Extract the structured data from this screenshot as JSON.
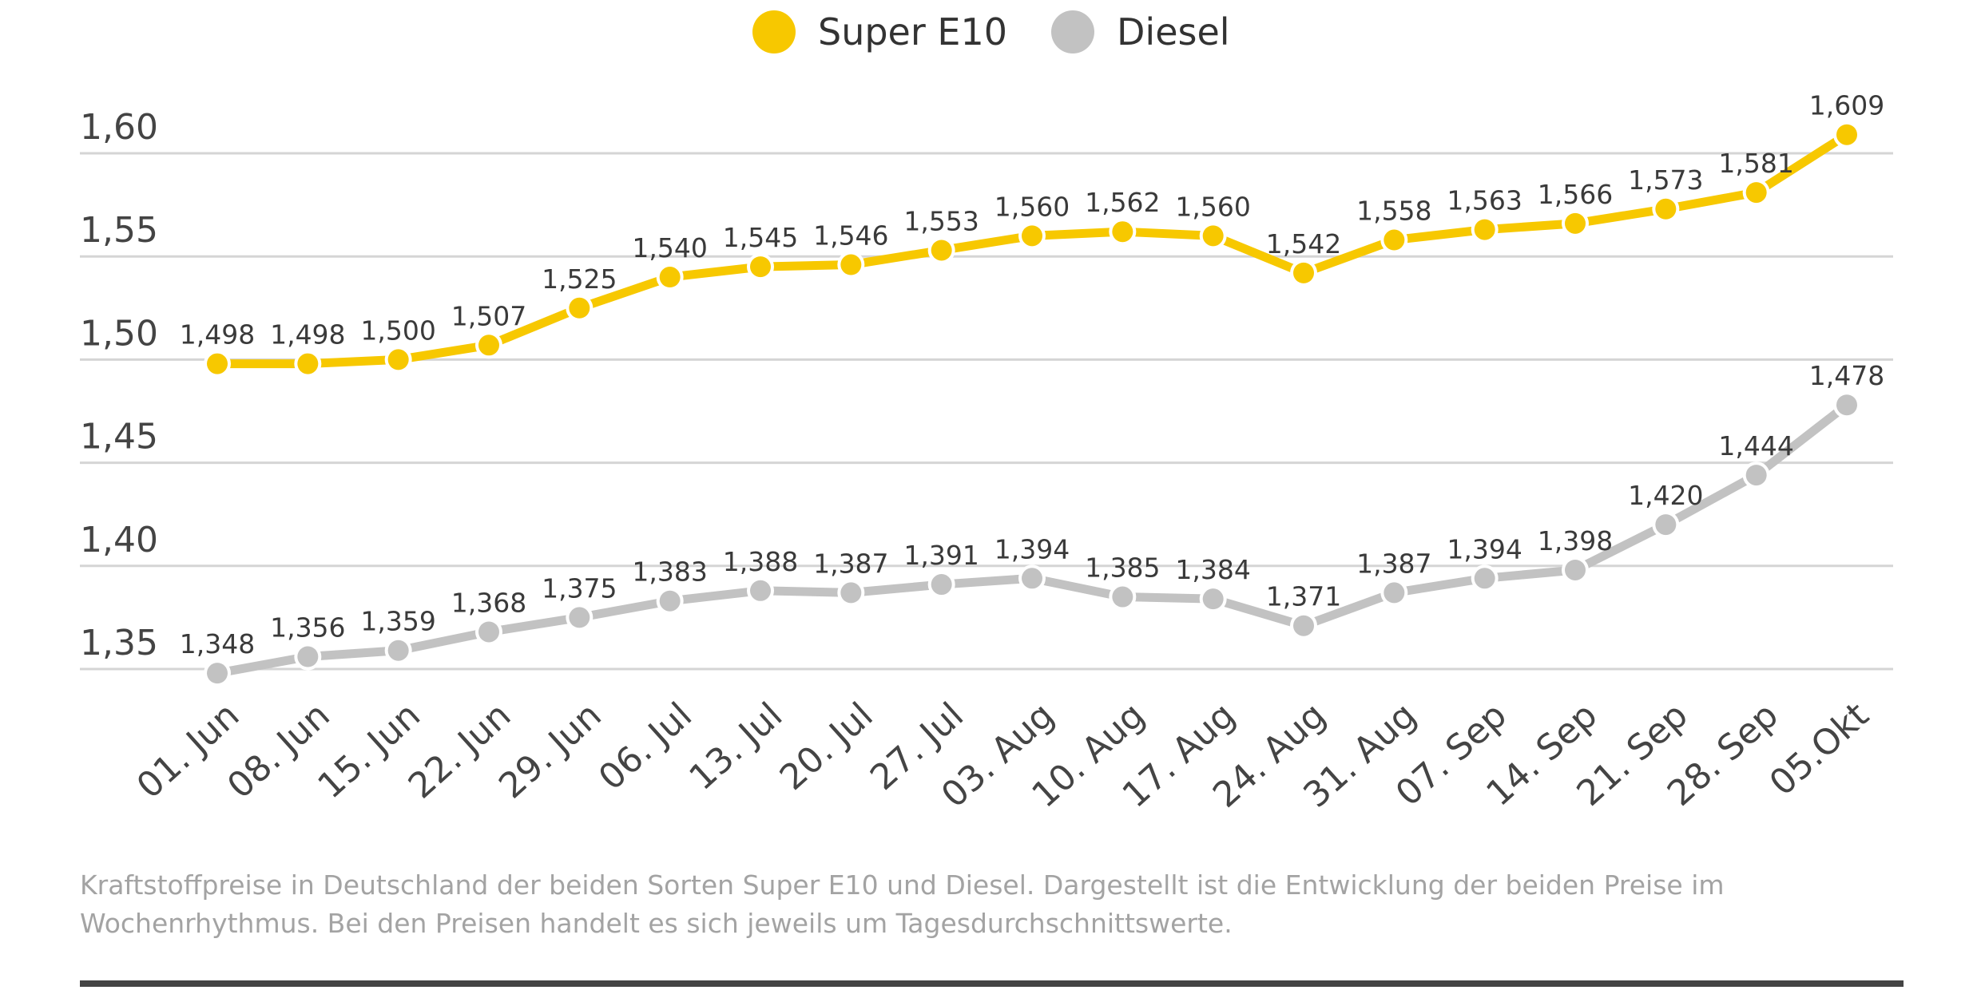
{
  "chart_data": {
    "type": "line",
    "title": "",
    "xlabel": "",
    "ylabel": "",
    "ylim": [
      1.33,
      1.625
    ],
    "yticks": [
      1.35,
      1.4,
      1.45,
      1.5,
      1.55,
      1.6
    ],
    "ytick_labels": [
      "1,35",
      "1,40",
      "1,45",
      "1,50",
      "1,55",
      "1,60"
    ],
    "grid": true,
    "legend_position": "top-center",
    "categories": [
      "01. Jun",
      "08. Jun",
      "15. Jun",
      "22. Jun",
      "29. Jun",
      "06. Jul",
      "13. Jul",
      "20. Jul",
      "27. Jul",
      "03. Aug",
      "10. Aug",
      "17. Aug",
      "24. Aug",
      "31. Aug",
      "07. Sep",
      "14. Sep",
      "21. Sep",
      "28. Sep",
      "05.Okt"
    ],
    "series": [
      {
        "name": "Super E10",
        "color": "#f7c800",
        "values": [
          1.498,
          1.498,
          1.5,
          1.507,
          1.525,
          1.54,
          1.545,
          1.546,
          1.553,
          1.56,
          1.562,
          1.56,
          1.542,
          1.558,
          1.563,
          1.566,
          1.573,
          1.581,
          1.609
        ],
        "labels": [
          "1,498",
          "1,498",
          "1,500",
          "1,507",
          "1,525",
          "1,540",
          "1,545",
          "1,546",
          "1,553",
          "1,560",
          "1,562",
          "1,560",
          "1,542",
          "1,558",
          "1,563",
          "1,566",
          "1,573",
          "1,581",
          "1,609"
        ]
      },
      {
        "name": "Diesel",
        "color": "#c2c2c2",
        "values": [
          1.348,
          1.356,
          1.359,
          1.368,
          1.375,
          1.383,
          1.388,
          1.387,
          1.391,
          1.394,
          1.385,
          1.384,
          1.371,
          1.387,
          1.394,
          1.398,
          1.42,
          1.444,
          1.478
        ],
        "labels": [
          "1,348",
          "1,356",
          "1,359",
          "1,368",
          "1,375",
          "1,383",
          "1,388",
          "1,387",
          "1,391",
          "1,394",
          "1,385",
          "1,384",
          "1,371",
          "1,387",
          "1,394",
          "1,398",
          "1,420",
          "1,444",
          "1,478"
        ]
      }
    ]
  },
  "legend": {
    "items": [
      {
        "label": "Super E10",
        "color": "#f7c800"
      },
      {
        "label": "Diesel",
        "color": "#c2c2c2"
      }
    ]
  },
  "caption": "Kraftstoffpreise in Deutschland der beiden Sorten Super E10 und Diesel. Dargestellt ist die Entwicklung der beiden Preise im Wochenrhythmus. Bei den Preisen handelt es sich jeweils um Tagesdurchschnittswerte."
}
